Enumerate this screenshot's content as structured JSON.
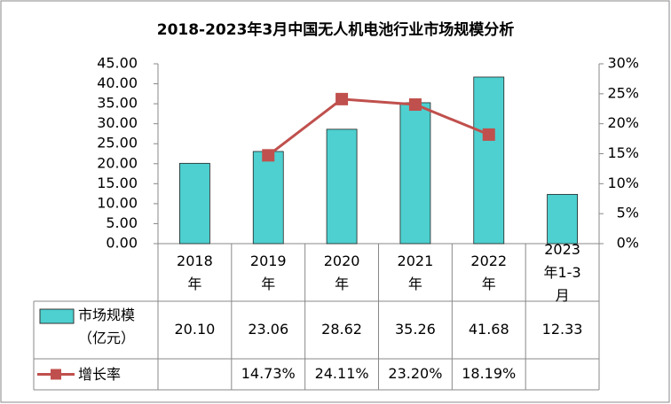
{
  "chart_data": {
    "type": "bar-line",
    "title": "2018-2023年3月中国无人机电池行业市场规模分析",
    "categories": [
      "2018年",
      "2019年",
      "2020年",
      "2021年",
      "2022年",
      "2023年1-3月"
    ],
    "series": [
      {
        "name": "市场规模（亿元）",
        "type": "bar",
        "color": "#4DD0CF",
        "values": [
          20.1,
          23.06,
          28.62,
          35.26,
          41.68,
          12.33
        ],
        "value_labels": [
          "20.10",
          "23.06",
          "28.62",
          "35.26",
          "41.68",
          "12.33"
        ]
      },
      {
        "name": "增长率",
        "type": "line",
        "axis": "y2",
        "color": "#C0504D",
        "values": [
          null,
          14.73,
          24.11,
          23.2,
          18.19,
          null
        ],
        "value_labels": [
          null,
          "14.73%",
          "24.11%",
          "23.20%",
          "18.19%",
          null
        ]
      }
    ],
    "ylim": [
      0,
      45
    ],
    "yticks": [
      {
        "value": 0,
        "label": "0.00"
      },
      {
        "value": 5,
        "label": "5.00"
      },
      {
        "value": 10,
        "label": "10.00"
      },
      {
        "value": 15,
        "label": "15.00"
      },
      {
        "value": 20,
        "label": "20.00"
      },
      {
        "value": 25,
        "label": "25.00"
      },
      {
        "value": 30,
        "label": "30.00"
      },
      {
        "value": 35,
        "label": "35.00"
      },
      {
        "value": 40,
        "label": "40.00"
      },
      {
        "value": 45,
        "label": "45.00"
      }
    ],
    "y2lim": [
      0,
      30
    ],
    "y2ticks": [
      {
        "value": 0,
        "label": "0%"
      },
      {
        "value": 5,
        "label": "5%"
      },
      {
        "value": 10,
        "label": "10%"
      },
      {
        "value": 15,
        "label": "15%"
      },
      {
        "value": 20,
        "label": "20%"
      },
      {
        "value": 25,
        "label": "25%"
      },
      {
        "value": 30,
        "label": "30%"
      }
    ]
  }
}
